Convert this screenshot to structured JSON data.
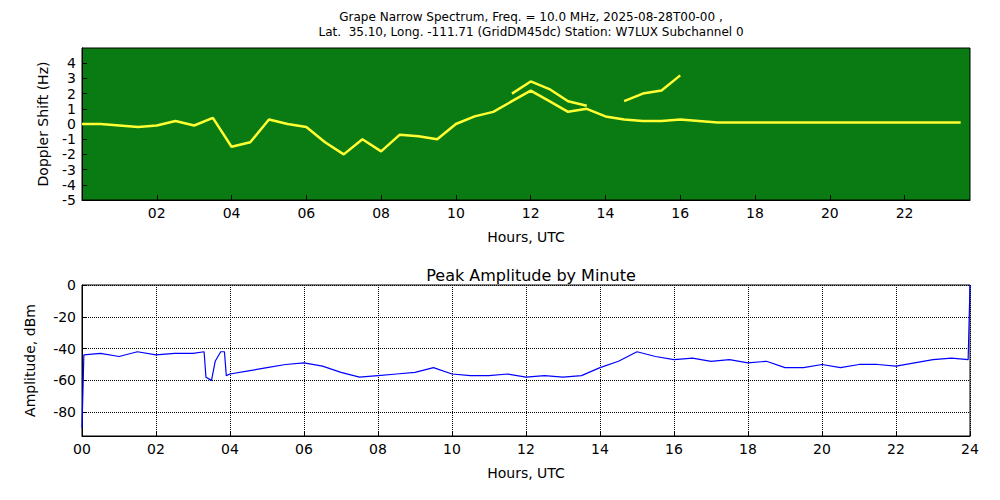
{
  "chart_data": [
    {
      "type": "line",
      "title": "Grape Narrow Spectrum, Freq. = 10.0 MHz, 2025-08-28T00-00 ,",
      "subtitle": "Lat.  35.10, Long. -111.71 (GridDM45dc) Station: W7LUX Subchannel 0",
      "x_label": "Hours, UTC",
      "y_label": "Doppler Shift (Hz)",
      "xlim": [
        0,
        23.75
      ],
      "ylim": [
        -5,
        5
      ],
      "xticks": [
        {
          "value": 2,
          "label": "02"
        },
        {
          "value": 4,
          "label": "04"
        },
        {
          "value": 6,
          "label": "06"
        },
        {
          "value": 8,
          "label": "08"
        },
        10,
        12,
        14,
        16,
        18,
        20,
        22
      ],
      "yticks": [
        -5,
        -4,
        -3,
        -2,
        -1,
        0,
        1,
        2,
        3,
        4
      ],
      "grid": false,
      "series": [
        {
          "color": "#ffff33",
          "line_style": "solid",
          "x": [
            0,
            0.5,
            1,
            1.5,
            2,
            2.5,
            3,
            3.5,
            4,
            4.5,
            5,
            5.5,
            6,
            6.5,
            7,
            7.5,
            8,
            8.5,
            9,
            9.5,
            10,
            10.5,
            11,
            11.5,
            12,
            12.5,
            13,
            13.5,
            14,
            14.5,
            15,
            15.5,
            16,
            16.5,
            17,
            17.5,
            18,
            18.5,
            19,
            19.5,
            20,
            20.5,
            21,
            21.5,
            22,
            22.5,
            23,
            23.5
          ],
          "values": [
            0,
            0,
            -0.1,
            -0.2,
            -0.1,
            0.2,
            -0.1,
            0.4,
            -1.5,
            -1.2,
            0.3,
            0,
            -0.2,
            -1.2,
            -2,
            -1,
            -1.8,
            -0.7,
            -0.8,
            -1,
            0,
            0.5,
            0.8,
            1.5,
            2.2,
            1.5,
            0.8,
            1,
            0.5,
            0.3,
            0.2,
            0.2,
            0.3,
            0.2,
            0.1,
            0.1,
            0.1,
            0.1,
            0.1,
            0.1,
            0.1,
            0.1,
            0.1,
            0.1,
            0.1,
            0.1,
            0.1,
            0.1
          ]
        },
        {
          "color": "#ffff33",
          "line_style": "solid",
          "x": [
            11.5,
            12,
            12.5,
            13,
            13.5
          ],
          "values": [
            2,
            2.8,
            2.3,
            1.5,
            1.2
          ]
        },
        {
          "color": "#ffff33",
          "line_style": "solid",
          "x": [
            14.5,
            15,
            15.5,
            16
          ],
          "values": [
            1.5,
            2,
            2.2,
            3.2
          ]
        }
      ]
    },
    {
      "type": "line",
      "title": "Peak Amplitude by Minute",
      "x_label": "Hours, UTC",
      "y_label": "Amplitude, dBm",
      "xlim": [
        0,
        24
      ],
      "ylim": [
        -95,
        0
      ],
      "xticks": [
        {
          "value": 0,
          "label": "00"
        },
        {
          "value": 2,
          "label": "02"
        },
        {
          "value": 4,
          "label": "04"
        },
        {
          "value": 6,
          "label": "06"
        },
        {
          "value": 8,
          "label": "08"
        },
        10,
        12,
        14,
        16,
        18,
        20,
        22,
        24
      ],
      "yticks": [
        0,
        -20,
        -40,
        -60,
        -80
      ],
      "grid": true,
      "color": "#0000ff",
      "line_style": "solid",
      "x": [
        0,
        0.05,
        0.5,
        1,
        1.5,
        2,
        2.5,
        3,
        3.3,
        3.35,
        3.5,
        3.6,
        3.75,
        3.85,
        3.9,
        4,
        4.5,
        5,
        5.5,
        6,
        6.5,
        7,
        7.5,
        8,
        8.5,
        9,
        9.5,
        10,
        10.5,
        11,
        11.5,
        12,
        12.5,
        13,
        13.5,
        14,
        14.5,
        15,
        15.5,
        16,
        16.5,
        17,
        17.5,
        18,
        18.5,
        19,
        19.5,
        20,
        20.5,
        21,
        21.5,
        22,
        22.5,
        23,
        23.5,
        23.95,
        24
      ],
      "values": [
        -90,
        -44,
        -43,
        -45,
        -42,
        -44,
        -43,
        -43,
        -42,
        -58,
        -60,
        -48,
        -42,
        -42,
        -57,
        -56,
        -54,
        -52,
        -50,
        -49,
        -51,
        -55,
        -58,
        -57,
        -56,
        -55,
        -52,
        -56,
        -57,
        -57,
        -56,
        -58,
        -57,
        -58,
        -57,
        -52,
        -48,
        -42,
        -45,
        -47,
        -46,
        -48,
        -47,
        -49,
        -48,
        -52,
        -52,
        -50,
        -52,
        -50,
        -50,
        -51,
        -49,
        -47,
        -46,
        -47,
        0
      ]
    }
  ]
}
